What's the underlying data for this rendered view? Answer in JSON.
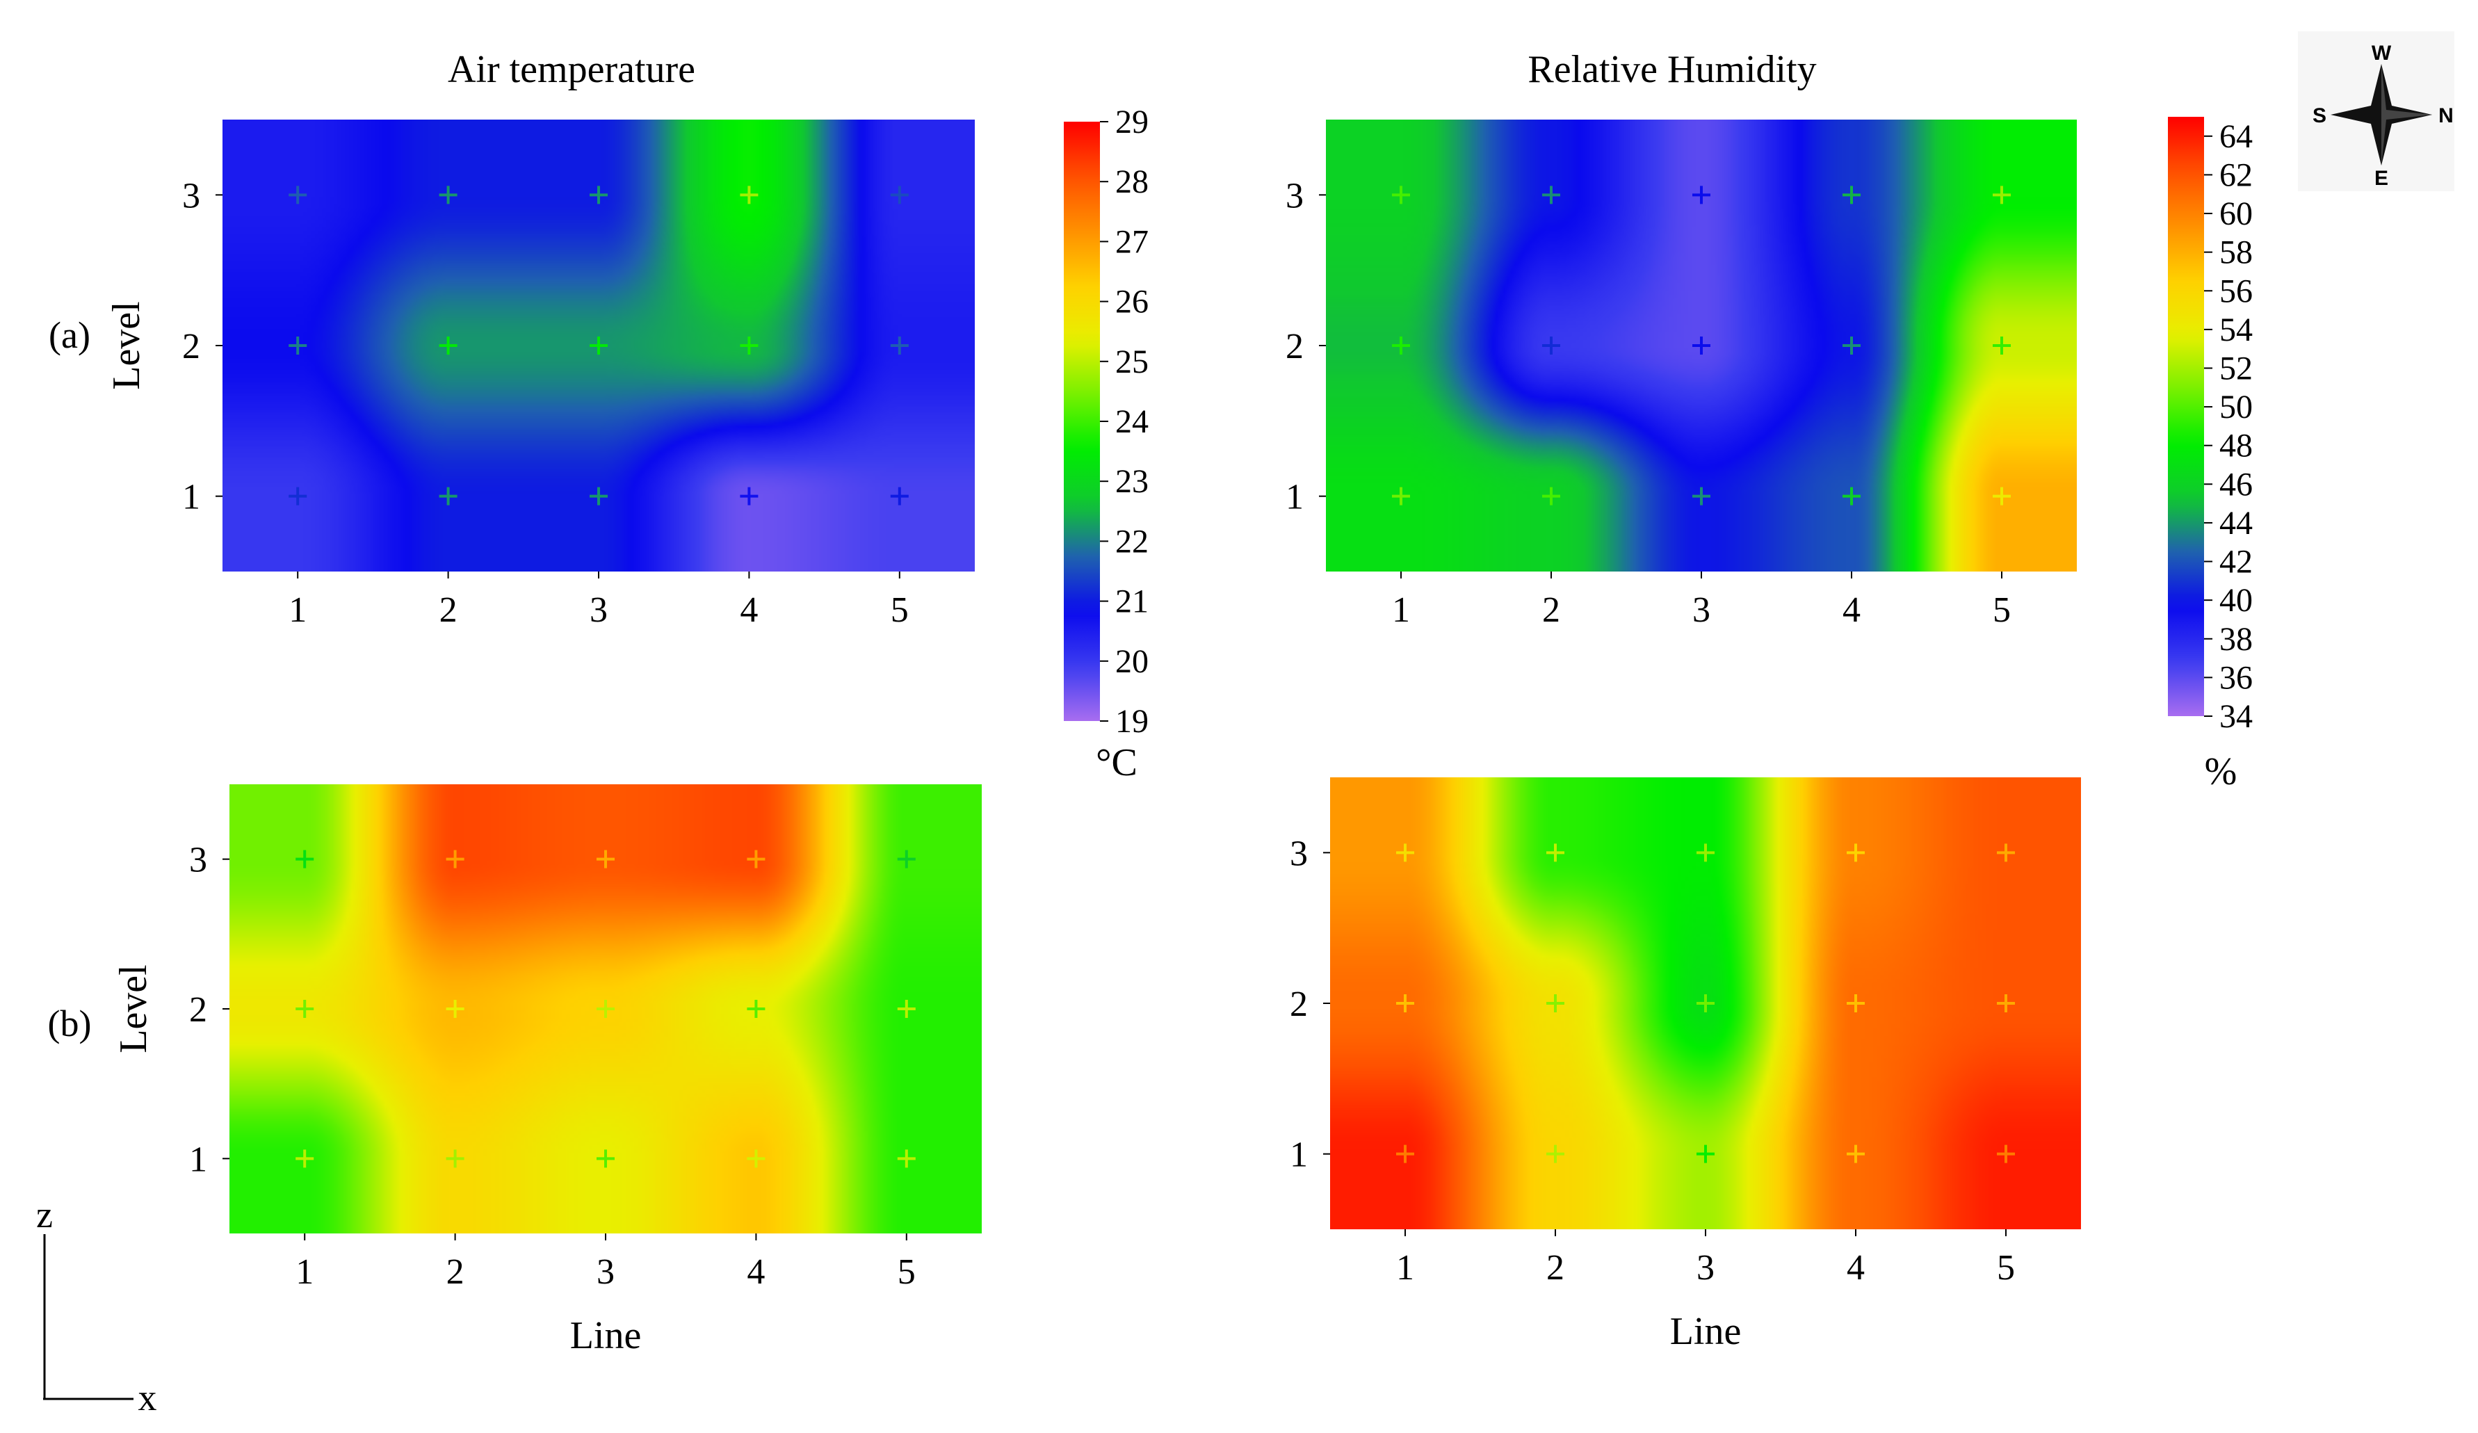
{
  "figure": {
    "column_titles": [
      "Air temperature",
      "Relative Humidity"
    ],
    "row_labels": [
      "(a)",
      "(b)"
    ],
    "axis_label_z": "z",
    "axis_label_x": "x"
  },
  "compass": {
    "north": "N",
    "south": "S",
    "east": "E",
    "west": "W"
  },
  "colorbars": [
    {
      "id": "temperature",
      "unit": "°C",
      "min": 19,
      "max": 29,
      "ticks": [
        29,
        28,
        27,
        26,
        25,
        24,
        23,
        22,
        21,
        20,
        19
      ]
    },
    {
      "id": "humidity",
      "unit": "%",
      "min": 34,
      "max": 65,
      "ticks": [
        64,
        62,
        60,
        58,
        56,
        54,
        52,
        50,
        48,
        46,
        44,
        42,
        40,
        38,
        36,
        34
      ]
    }
  ],
  "colors": {
    "stops": [
      "#a86df0",
      "#3c3cf0",
      "#0a0aee",
      "#1f60b0",
      "#10c830",
      "#00ee00",
      "#78f000",
      "#e8f000",
      "#ffd000",
      "#ff9000",
      "#ff5000",
      "#ff0000"
    ]
  },
  "chart_data": [
    {
      "type": "heatmap",
      "panel": "a",
      "variable": "Air temperature",
      "unit": "°C",
      "title": "Air temperature",
      "xlabel": "",
      "ylabel": "Level",
      "x": [
        1,
        2,
        3,
        4,
        5
      ],
      "y": [
        1,
        2,
        3
      ],
      "xlim": [
        0.5,
        5.5
      ],
      "ylim": [
        0.5,
        3.5
      ],
      "vmin": 19,
      "vmax": 29,
      "z": [
        [
          20.0,
          21.0,
          21.0,
          19.5,
          19.8
        ],
        [
          20.8,
          22.2,
          22.2,
          22.5,
          20.5
        ],
        [
          20.5,
          21.0,
          21.0,
          23.6,
          20.3
        ]
      ]
    },
    {
      "type": "heatmap",
      "panel": "a",
      "variable": "Relative Humidity",
      "unit": "%",
      "title": "Relative Humidity",
      "xlabel": "",
      "ylabel": "",
      "x": [
        1,
        2,
        3,
        4,
        5
      ],
      "y": [
        1,
        2,
        3
      ],
      "xlim": [
        0.5,
        5.5
      ],
      "ylim": [
        0.5,
        3.5
      ],
      "vmin": 34,
      "vmax": 65,
      "z": [
        [
          47,
          46,
          40,
          42,
          58
        ],
        [
          45,
          37,
          36,
          40,
          53
        ],
        [
          46,
          40,
          36,
          41,
          48
        ]
      ]
    },
    {
      "type": "heatmap",
      "panel": "b",
      "variable": "Air temperature",
      "unit": "°C",
      "title": "",
      "xlabel": "Line",
      "ylabel": "Level",
      "x": [
        1,
        2,
        3,
        4,
        5
      ],
      "y": [
        1,
        2,
        3
      ],
      "xlim": [
        0.5,
        5.5
      ],
      "ylim": [
        0.5,
        3.5
      ],
      "vmin": 19,
      "vmax": 29,
      "z": [
        [
          23.8,
          26.0,
          25.4,
          26.4,
          23.8
        ],
        [
          25.6,
          26.6,
          26.2,
          25.4,
          23.8
        ],
        [
          24.4,
          28.2,
          28.0,
          28.2,
          24.0
        ]
      ]
    },
    {
      "type": "heatmap",
      "panel": "b",
      "variable": "Relative Humidity",
      "unit": "%",
      "title": "",
      "xlabel": "Line",
      "ylabel": "",
      "x": [
        1,
        2,
        3,
        4,
        5
      ],
      "y": [
        1,
        2,
        3
      ],
      "xlim": [
        0.5,
        5.5
      ],
      "ylim": [
        0.5,
        3.5
      ],
      "vmin": 34,
      "vmax": 65,
      "z": [
        [
          64,
          56,
          52,
          61,
          64
        ],
        [
          61,
          55,
          47,
          61,
          62
        ],
        [
          59,
          49,
          48,
          60,
          62
        ]
      ]
    }
  ]
}
